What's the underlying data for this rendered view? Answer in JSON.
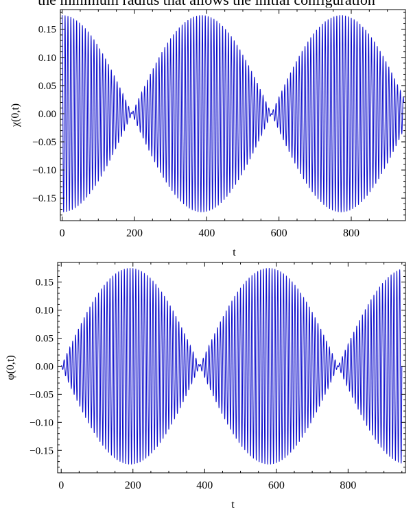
{
  "page": {
    "cut_title": "the minimum radius that allows the initial configuration"
  },
  "colors": {
    "signal": "#1010cc",
    "frame": "#000000"
  },
  "chart_data": [
    {
      "type": "line",
      "xlabel": "t",
      "ylabel": "χ(0,t)",
      "xlim": [
        -5,
        950
      ],
      "ylim": [
        -0.19,
        0.185
      ],
      "xticks": [
        0,
        200,
        400,
        600,
        800
      ],
      "yticks": [
        0.15,
        0.1,
        0.05,
        0.0,
        -0.05,
        -0.1,
        -0.15
      ],
      "ytick_labels": [
        "0.15",
        "0.10",
        "0.05",
        "0.00",
        "−0.05",
        "−0.10",
        "−0.15"
      ],
      "grid": false,
      "signal": {
        "envelope": "cos",
        "amplitude": 0.175,
        "beat_period": 772,
        "carrier_period": 8.0,
        "t_start": 0,
        "t_end": 945
      }
    },
    {
      "type": "line",
      "xlabel": "t",
      "ylabel": "φ(0,t)",
      "xlim": [
        -10,
        960
      ],
      "ylim": [
        -0.19,
        0.185
      ],
      "xticks": [
        0,
        200,
        400,
        600,
        800
      ],
      "yticks": [
        0.15,
        0.1,
        0.05,
        0.0,
        -0.05,
        -0.1,
        -0.15
      ],
      "ytick_labels": [
        "0.15",
        "0.10",
        "0.05",
        "0.00",
        "−0.05",
        "−0.10",
        "−0.15"
      ],
      "grid": false,
      "signal": {
        "envelope": "sin",
        "amplitude": 0.175,
        "beat_period": 772,
        "carrier_period": 8.0,
        "t_start": 0,
        "t_end": 950
      }
    }
  ]
}
